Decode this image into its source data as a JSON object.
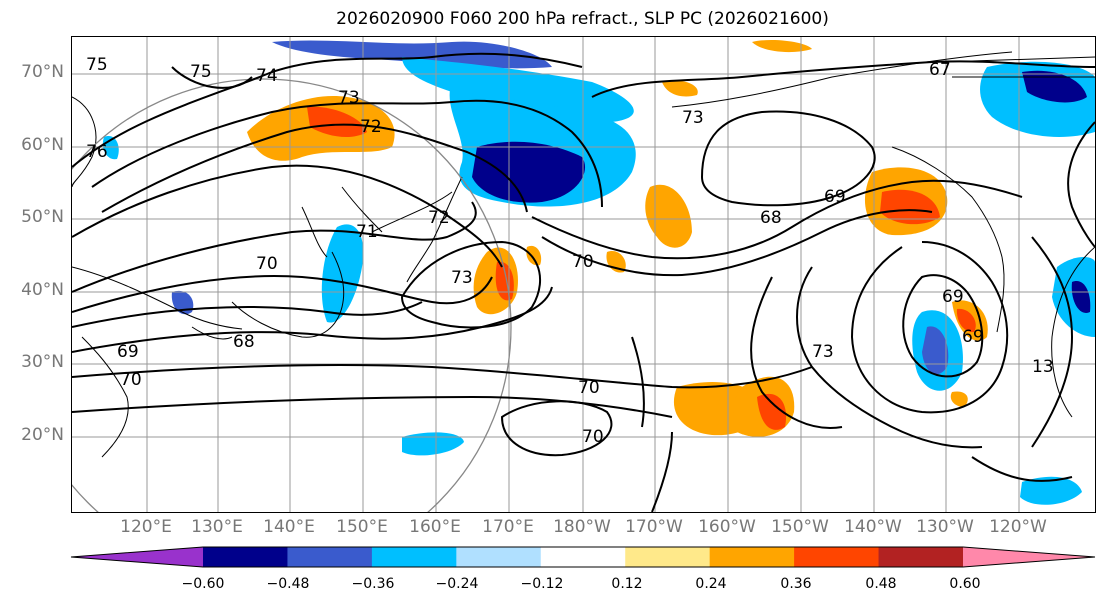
{
  "title": "2026020900 F060 200 hPa refract., SLP PC (2026021600)",
  "lat_labels": [
    "70°N",
    "60°N",
    "50°N",
    "40°N",
    "30°N",
    "20°N"
  ],
  "lon_labels": [
    "120°E",
    "130°E",
    "140°E",
    "150°E",
    "160°E",
    "170°E",
    "180°W",
    "170°W",
    "160°W",
    "150°W",
    "140°W",
    "130°W",
    "120°W"
  ],
  "contour_labels": [
    "75",
    "74",
    "73",
    "72",
    "75",
    "76",
    "70",
    "72",
    "71",
    "73",
    "69",
    "70",
    "68",
    "69",
    "70",
    "70",
    "68",
    "67",
    "73",
    "70",
    "69",
    "73",
    "69",
    "13"
  ],
  "colorbar": {
    "ticks": [
      "−0.60",
      "−0.48",
      "−0.36",
      "−0.24",
      "−0.12",
      "0.12",
      "0.24",
      "0.36",
      "0.48",
      "0.60"
    ],
    "colors": [
      "#9932cc",
      "#00008b",
      "#3a5bcd",
      "#00bfff",
      "#b0e0ff",
      "#ffffff",
      "#ffe98a",
      "#ffa500",
      "#ff4500",
      "#b22222",
      "#ff88aa"
    ]
  },
  "colors": {
    "contour": "#000000",
    "grid": "#999999",
    "circle": "#888888",
    "coast": "#000000"
  }
}
